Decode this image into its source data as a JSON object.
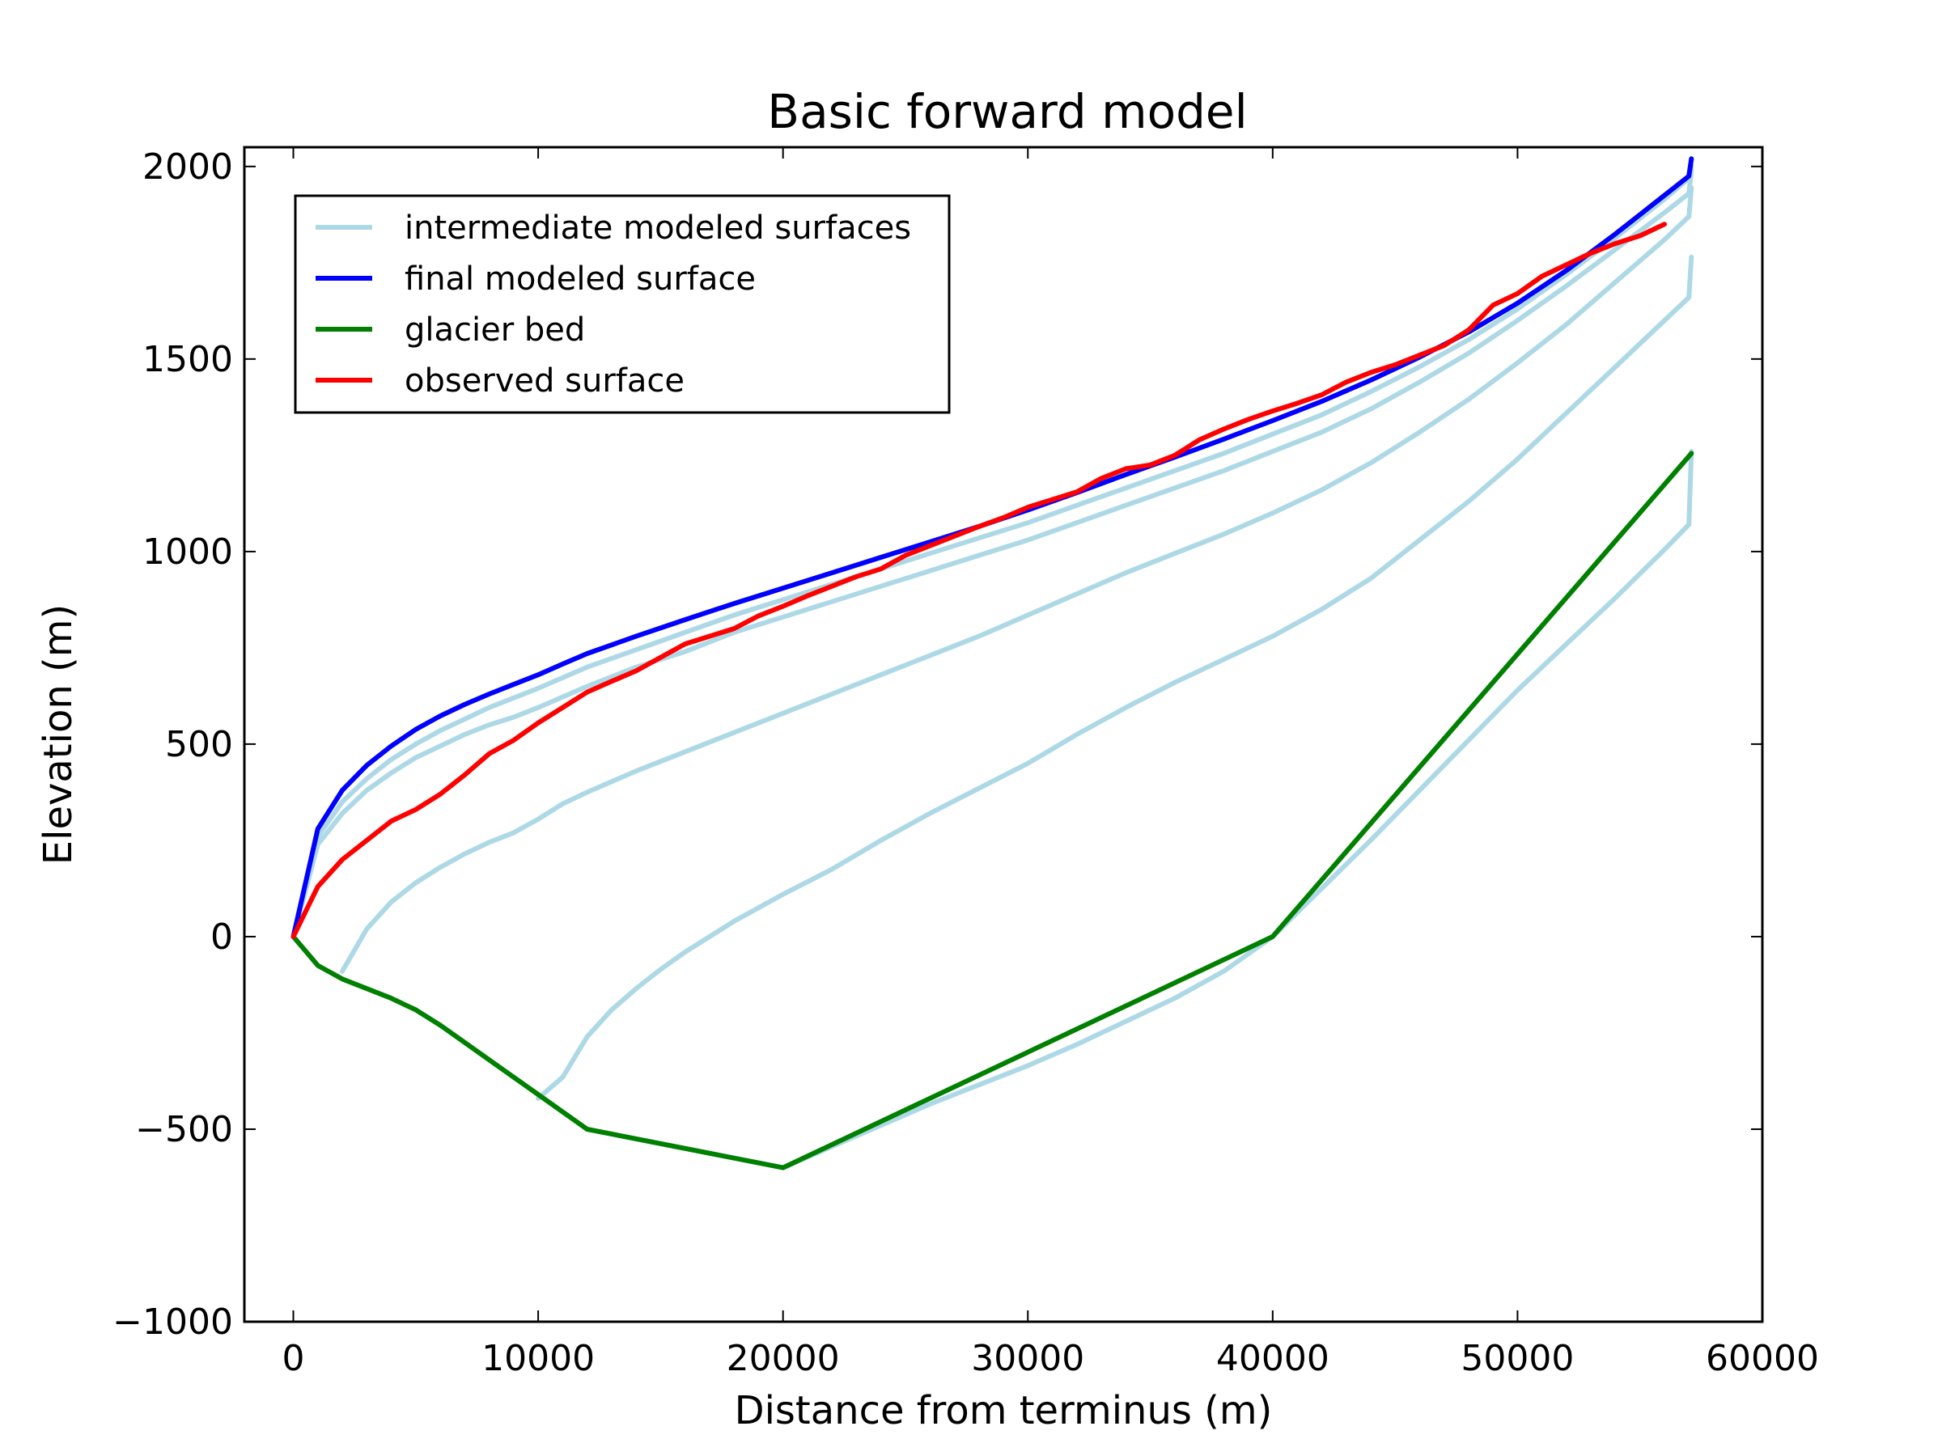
{
  "chart_data": {
    "type": "line",
    "title": "Basic forward model",
    "xlabel": "Distance from terminus (m)",
    "ylabel": "Elevation (m)",
    "xlim": [
      -2000,
      60000
    ],
    "ylim": [
      -1000,
      2050
    ],
    "xticks": [
      0,
      10000,
      20000,
      30000,
      40000,
      50000,
      60000
    ],
    "xtick_labels": [
      "0",
      "10000",
      "20000",
      "30000",
      "40000",
      "50000",
      "60000"
    ],
    "yticks": [
      -1000,
      -500,
      0,
      500,
      1000,
      1500,
      2000
    ],
    "ytick_labels": [
      "−1000",
      "−500",
      "0",
      "500",
      "1000",
      "1500",
      "2000"
    ],
    "grid": false,
    "legend": {
      "position": "top-left",
      "entries": [
        {
          "label": "intermediate modeled surfaces",
          "color": "#add8e6"
        },
        {
          "label": "final modeled surface",
          "color": "#0000ff"
        },
        {
          "label": "glacier bed",
          "color": "#008000"
        },
        {
          "label": "observed surface",
          "color": "#ff0000"
        }
      ]
    },
    "series": [
      {
        "role": "intermediate",
        "color": "#add8e6",
        "points": [
          [
            10000,
            -420
          ],
          [
            11000,
            -365
          ],
          [
            12000,
            -260
          ],
          [
            13000,
            -190
          ],
          [
            14000,
            -135
          ],
          [
            15000,
            -85
          ],
          [
            16000,
            -40
          ],
          [
            17000,
            0
          ],
          [
            18000,
            40
          ],
          [
            19000,
            75
          ],
          [
            20000,
            110
          ],
          [
            22000,
            175
          ],
          [
            24000,
            250
          ],
          [
            26000,
            320
          ],
          [
            28000,
            385
          ],
          [
            30000,
            450
          ],
          [
            32000,
            525
          ],
          [
            34000,
            595
          ],
          [
            36000,
            660
          ],
          [
            38000,
            720
          ],
          [
            40000,
            780
          ],
          [
            42000,
            850
          ],
          [
            44000,
            930
          ],
          [
            46000,
            1030
          ],
          [
            48000,
            1130
          ],
          [
            50000,
            1240
          ],
          [
            52000,
            1360
          ],
          [
            54000,
            1480
          ],
          [
            56000,
            1600
          ],
          [
            57000,
            1660
          ],
          [
            57100,
            1765
          ]
        ]
      },
      {
        "role": "intermediate",
        "color": "#add8e6",
        "points": [
          [
            2000,
            -90
          ],
          [
            3000,
            20
          ],
          [
            4000,
            90
          ],
          [
            5000,
            140
          ],
          [
            6000,
            180
          ],
          [
            7000,
            215
          ],
          [
            8000,
            245
          ],
          [
            9000,
            270
          ],
          [
            10000,
            305
          ],
          [
            11000,
            345
          ],
          [
            12000,
            375
          ],
          [
            14000,
            430
          ],
          [
            16000,
            480
          ],
          [
            18000,
            530
          ],
          [
            20000,
            580
          ],
          [
            22000,
            630
          ],
          [
            24000,
            680
          ],
          [
            26000,
            730
          ],
          [
            28000,
            780
          ],
          [
            30000,
            835
          ],
          [
            32000,
            890
          ],
          [
            34000,
            945
          ],
          [
            36000,
            995
          ],
          [
            38000,
            1045
          ],
          [
            40000,
            1100
          ],
          [
            42000,
            1160
          ],
          [
            44000,
            1230
          ],
          [
            46000,
            1310
          ],
          [
            48000,
            1395
          ],
          [
            50000,
            1490
          ],
          [
            52000,
            1590
          ],
          [
            54000,
            1700
          ],
          [
            56000,
            1810
          ],
          [
            57000,
            1870
          ],
          [
            57100,
            1945
          ]
        ]
      },
      {
        "role": "intermediate",
        "color": "#add8e6",
        "points": [
          [
            0,
            0
          ],
          [
            1000,
            240
          ],
          [
            2000,
            320
          ],
          [
            3000,
            380
          ],
          [
            4000,
            425
          ],
          [
            5000,
            465
          ],
          [
            6000,
            495
          ],
          [
            7000,
            525
          ],
          [
            8000,
            550
          ],
          [
            9000,
            570
          ],
          [
            10000,
            595
          ],
          [
            12000,
            650
          ],
          [
            14000,
            700
          ],
          [
            16000,
            740
          ],
          [
            18000,
            790
          ],
          [
            20000,
            830
          ],
          [
            22000,
            870
          ],
          [
            24000,
            910
          ],
          [
            26000,
            950
          ],
          [
            28000,
            990
          ],
          [
            30000,
            1030
          ],
          [
            32000,
            1075
          ],
          [
            34000,
            1120
          ],
          [
            36000,
            1165
          ],
          [
            38000,
            1210
          ],
          [
            40000,
            1260
          ],
          [
            42000,
            1310
          ],
          [
            44000,
            1370
          ],
          [
            46000,
            1440
          ],
          [
            48000,
            1515
          ],
          [
            50000,
            1600
          ],
          [
            52000,
            1690
          ],
          [
            54000,
            1785
          ],
          [
            56000,
            1880
          ],
          [
            57000,
            1930
          ],
          [
            57100,
            1990
          ]
        ]
      },
      {
        "role": "intermediate",
        "color": "#add8e6",
        "points": [
          [
            0,
            0
          ],
          [
            1000,
            260
          ],
          [
            2000,
            350
          ],
          [
            3000,
            410
          ],
          [
            4000,
            460
          ],
          [
            5000,
            500
          ],
          [
            6000,
            535
          ],
          [
            7000,
            565
          ],
          [
            8000,
            595
          ],
          [
            9000,
            620
          ],
          [
            10000,
            645
          ],
          [
            12000,
            700
          ],
          [
            14000,
            745
          ],
          [
            16000,
            790
          ],
          [
            18000,
            835
          ],
          [
            20000,
            875
          ],
          [
            22000,
            915
          ],
          [
            24000,
            955
          ],
          [
            26000,
            995
          ],
          [
            28000,
            1035
          ],
          [
            30000,
            1075
          ],
          [
            32000,
            1120
          ],
          [
            34000,
            1165
          ],
          [
            36000,
            1210
          ],
          [
            38000,
            1255
          ],
          [
            40000,
            1305
          ],
          [
            42000,
            1355
          ],
          [
            44000,
            1415
          ],
          [
            46000,
            1480
          ],
          [
            48000,
            1550
          ],
          [
            50000,
            1630
          ],
          [
            52000,
            1720
          ],
          [
            54000,
            1815
          ],
          [
            56000,
            1915
          ],
          [
            57000,
            1970
          ],
          [
            57100,
            2000
          ]
        ]
      },
      {
        "role": "intermediate",
        "color": "#add8e6",
        "points": [
          [
            12000,
            -500
          ],
          [
            16000,
            -550
          ],
          [
            20000,
            -600
          ],
          [
            22000,
            -545
          ],
          [
            24000,
            -490
          ],
          [
            26000,
            -435
          ],
          [
            28000,
            -385
          ],
          [
            30000,
            -335
          ],
          [
            32000,
            -280
          ],
          [
            34000,
            -220
          ],
          [
            36000,
            -160
          ],
          [
            38000,
            -90
          ],
          [
            40000,
            0
          ],
          [
            42000,
            125
          ],
          [
            44000,
            250
          ],
          [
            46000,
            380
          ],
          [
            48000,
            510
          ],
          [
            50000,
            640
          ],
          [
            52000,
            760
          ],
          [
            54000,
            880
          ],
          [
            56000,
            1005
          ],
          [
            57000,
            1070
          ],
          [
            57100,
            1260
          ]
        ]
      },
      {
        "name": "final modeled surface",
        "role": "final",
        "color": "#0000ff",
        "points": [
          [
            0,
            0
          ],
          [
            1000,
            280
          ],
          [
            2000,
            380
          ],
          [
            3000,
            445
          ],
          [
            4000,
            495
          ],
          [
            5000,
            538
          ],
          [
            6000,
            573
          ],
          [
            7000,
            603
          ],
          [
            8000,
            630
          ],
          [
            9000,
            655
          ],
          [
            10000,
            680
          ],
          [
            11000,
            708
          ],
          [
            12000,
            735
          ],
          [
            14000,
            780
          ],
          [
            16000,
            823
          ],
          [
            18000,
            865
          ],
          [
            20000,
            905
          ],
          [
            22000,
            945
          ],
          [
            24000,
            985
          ],
          [
            26000,
            1025
          ],
          [
            28000,
            1065
          ],
          [
            30000,
            1108
          ],
          [
            32000,
            1153
          ],
          [
            34000,
            1200
          ],
          [
            36000,
            1245
          ],
          [
            38000,
            1292
          ],
          [
            40000,
            1340
          ],
          [
            42000,
            1390
          ],
          [
            44000,
            1445
          ],
          [
            46000,
            1505
          ],
          [
            48000,
            1570
          ],
          [
            50000,
            1645
          ],
          [
            52000,
            1730
          ],
          [
            54000,
            1825
          ],
          [
            56000,
            1925
          ],
          [
            57000,
            1975
          ],
          [
            57100,
            2020
          ]
        ]
      },
      {
        "name": "glacier bed",
        "role": "bed",
        "color": "#008000",
        "points": [
          [
            0,
            0
          ],
          [
            1000,
            -75
          ],
          [
            2000,
            -110
          ],
          [
            3000,
            -135
          ],
          [
            4000,
            -160
          ],
          [
            5000,
            -190
          ],
          [
            6000,
            -230
          ],
          [
            12000,
            -500
          ],
          [
            20000,
            -600
          ],
          [
            40000,
            0
          ],
          [
            57100,
            1255
          ]
        ]
      },
      {
        "name": "observed surface",
        "role": "observed",
        "color": "#ff0000",
        "points": [
          [
            0,
            0
          ],
          [
            1000,
            130
          ],
          [
            2000,
            200
          ],
          [
            3000,
            250
          ],
          [
            4000,
            300
          ],
          [
            5000,
            330
          ],
          [
            6000,
            370
          ],
          [
            7000,
            420
          ],
          [
            8000,
            475
          ],
          [
            9000,
            510
          ],
          [
            10000,
            555
          ],
          [
            11000,
            595
          ],
          [
            12000,
            635
          ],
          [
            13000,
            663
          ],
          [
            14000,
            690
          ],
          [
            15000,
            725
          ],
          [
            16000,
            760
          ],
          [
            17000,
            780
          ],
          [
            18000,
            800
          ],
          [
            19000,
            833
          ],
          [
            20000,
            858
          ],
          [
            21000,
            885
          ],
          [
            22000,
            910
          ],
          [
            23000,
            935
          ],
          [
            24000,
            955
          ],
          [
            25000,
            990
          ],
          [
            26000,
            1015
          ],
          [
            27000,
            1040
          ],
          [
            28000,
            1065
          ],
          [
            29000,
            1088
          ],
          [
            30000,
            1115
          ],
          [
            31000,
            1135
          ],
          [
            32000,
            1155
          ],
          [
            33000,
            1190
          ],
          [
            34000,
            1215
          ],
          [
            35000,
            1225
          ],
          [
            36000,
            1250
          ],
          [
            37000,
            1290
          ],
          [
            38000,
            1318
          ],
          [
            39000,
            1343
          ],
          [
            40000,
            1365
          ],
          [
            41000,
            1385
          ],
          [
            42000,
            1407
          ],
          [
            43000,
            1440
          ],
          [
            44000,
            1465
          ],
          [
            45000,
            1485
          ],
          [
            46000,
            1510
          ],
          [
            47000,
            1535
          ],
          [
            48000,
            1575
          ],
          [
            49000,
            1640
          ],
          [
            50000,
            1670
          ],
          [
            51000,
            1715
          ],
          [
            52000,
            1745
          ],
          [
            53000,
            1775
          ],
          [
            54000,
            1800
          ],
          [
            55000,
            1820
          ],
          [
            56000,
            1850
          ]
        ]
      }
    ]
  }
}
